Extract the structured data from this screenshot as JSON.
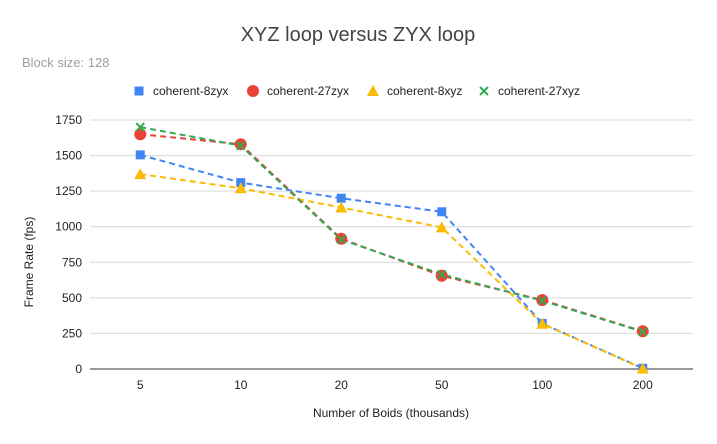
{
  "chart_data": {
    "type": "line",
    "title": "XYZ loop versus ZYX loop",
    "subtitle": "Block size: 128",
    "xlabel": "Number of Boids (thousands)",
    "ylabel": "Frame Rate (fps)",
    "categories": [
      "5",
      "10",
      "20",
      "50",
      "100",
      "200"
    ],
    "ylim": [
      0,
      1750
    ],
    "yticks": [
      0,
      250,
      500,
      750,
      1000,
      1250,
      1500,
      1750
    ],
    "ytick_labels": [
      "0",
      "250",
      "500",
      "750",
      "1000",
      "1250",
      "1500",
      "1750"
    ],
    "grid": true,
    "legend_position": "top",
    "series": [
      {
        "name": "coherent-8zyx",
        "color": "#4285f4",
        "marker": "square",
        "values": [
          1505,
          1310,
          1200,
          1105,
          320,
          5
        ]
      },
      {
        "name": "coherent-27zyx",
        "color": "#ea4335",
        "marker": "circle",
        "values": [
          1650,
          1580,
          915,
          655,
          485,
          265
        ]
      },
      {
        "name": "coherent-8xyz",
        "color": "#fbbc04",
        "marker": "triangle",
        "values": [
          1370,
          1270,
          1135,
          995,
          318,
          3
        ]
      },
      {
        "name": "coherent-27xyz",
        "color": "#34a853",
        "marker": "x",
        "values": [
          1700,
          1570,
          910,
          665,
          480,
          262
        ]
      }
    ]
  }
}
